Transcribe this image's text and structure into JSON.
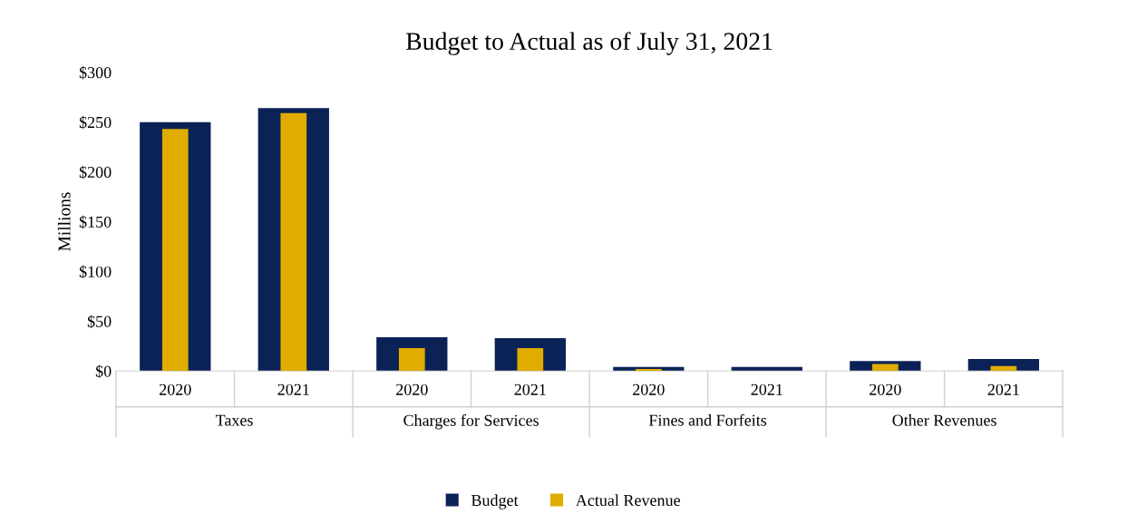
{
  "chart_data": {
    "type": "bar",
    "title": "Budget to Actual as of July 31, 2021",
    "ylabel": "Millions",
    "categories": [
      "2020",
      "2021",
      "2020",
      "2021",
      "2020",
      "2021",
      "2020",
      "2021"
    ],
    "series": [
      {
        "name": "Budget",
        "color": "#0b2257",
        "values": [
          250,
          264,
          34,
          33,
          4,
          4,
          10,
          12
        ]
      },
      {
        "name": "Actual Revenue",
        "color": "#e0ac00",
        "values": [
          243,
          259,
          23,
          23,
          2,
          null,
          7,
          5
        ]
      }
    ],
    "annotations": [
      "Taxes",
      "Charges for Services",
      "Fines and Forfeits",
      "Other Revenues"
    ],
    "ylim": [
      0,
      300
    ],
    "yticks": [
      {
        "value": 0,
        "label": "$0"
      },
      {
        "value": 50,
        "label": "$50"
      },
      {
        "value": 100,
        "label": "$100"
      },
      {
        "value": 150,
        "label": "$150"
      },
      {
        "value": 200,
        "label": "$200"
      },
      {
        "value": 250,
        "label": "$250"
      },
      {
        "value": 300,
        "label": "$300"
      }
    ],
    "grid": false,
    "legend": "bottom"
  }
}
